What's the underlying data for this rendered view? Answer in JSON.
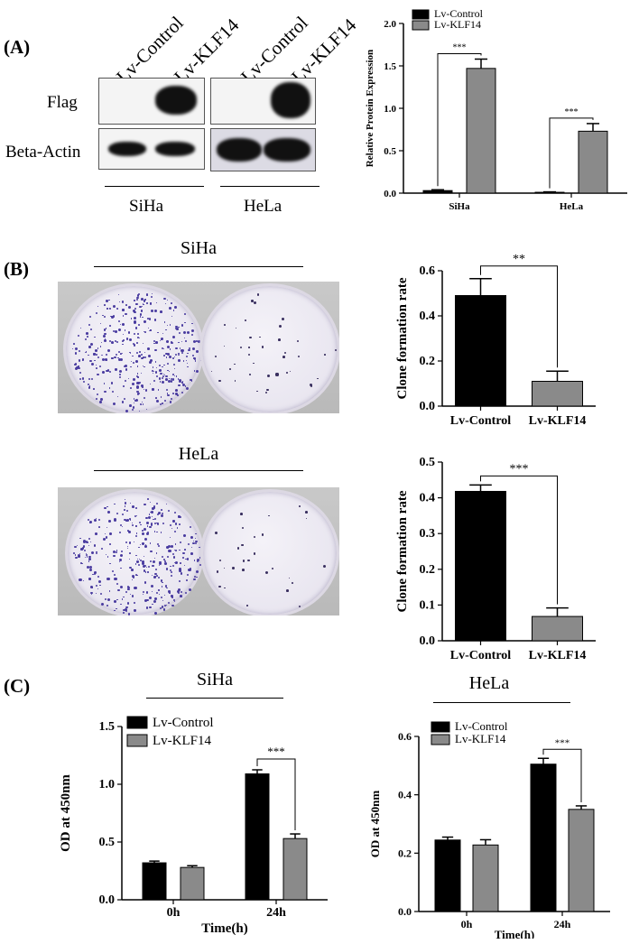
{
  "panels": {
    "A": {
      "label": "(A)",
      "blot": {
        "lanes": [
          "Lv-Control",
          "Lv-KLF14",
          "Lv-Control",
          "Lv-KLF14"
        ],
        "rows": [
          "Flag",
          "Beta-Actin"
        ],
        "cells": [
          "SiHa",
          "HeLa"
        ]
      }
    },
    "B": {
      "label": "(B)",
      "photo_titles": [
        "SiHa",
        "HeLa"
      ]
    },
    "C": {
      "label": "(C)",
      "titles": [
        "SiHa",
        "HeLa"
      ]
    }
  },
  "chart_data": [
    {
      "id": "relative-protein",
      "type": "bar",
      "categories": [
        "SiHa",
        "HeLa"
      ],
      "series": [
        {
          "name": "Lv-Control",
          "values": [
            0.03,
            0.01
          ],
          "errors": [
            0.01,
            0.005
          ],
          "color": "#000000"
        },
        {
          "name": "Lv-KLF14",
          "values": [
            1.47,
            0.73
          ],
          "errors": [
            0.11,
            0.09
          ],
          "color": "#8a8a8a"
        }
      ],
      "xlabel": "",
      "ylabel": "Relative Protein Expression",
      "ylim": [
        0,
        2.0
      ],
      "yticks": [
        "0.0",
        "0.5",
        "1.0",
        "1.5",
        "2.0"
      ],
      "legend": "top-left",
      "significance": [
        "***",
        "***"
      ]
    },
    {
      "id": "clone-siha",
      "type": "bar",
      "categories": [
        "Lv-Control",
        "Lv-KLF14"
      ],
      "values": [
        0.49,
        0.11
      ],
      "errors": [
        0.075,
        0.045
      ],
      "colors": [
        "#000000",
        "#8a8a8a"
      ],
      "ylabel": "Clone formation rate",
      "ylim": [
        0,
        0.6
      ],
      "yticks": [
        "0.0",
        "0.2",
        "0.4",
        "0.6"
      ],
      "significance": "**"
    },
    {
      "id": "clone-hela",
      "type": "bar",
      "categories": [
        "Lv-Control",
        "Lv-KLF14"
      ],
      "values": [
        0.418,
        0.068
      ],
      "errors": [
        0.018,
        0.024
      ],
      "colors": [
        "#000000",
        "#8a8a8a"
      ],
      "ylabel": "Clone formation rate",
      "ylim": [
        0,
        0.5
      ],
      "yticks": [
        "0.0",
        "0.1",
        "0.2",
        "0.3",
        "0.4",
        "0.5"
      ],
      "significance": "***"
    },
    {
      "id": "cck8-siha",
      "type": "bar",
      "categories": [
        "0h",
        "24h"
      ],
      "series": [
        {
          "name": "Lv-Control",
          "values": [
            0.32,
            1.09
          ],
          "errors": [
            0.015,
            0.035
          ],
          "color": "#000000"
        },
        {
          "name": "Lv-KLF14",
          "values": [
            0.28,
            0.53
          ],
          "errors": [
            0.015,
            0.04
          ],
          "color": "#8a8a8a"
        }
      ],
      "xlabel": "Time(h)",
      "ylabel": "OD at 450nm",
      "ylim": [
        0,
        1.5
      ],
      "yticks": [
        "0.0",
        "0.5",
        "1.0",
        "1.5"
      ],
      "legend": "top-left",
      "significance": [
        null,
        "***"
      ]
    },
    {
      "id": "cck8-hela",
      "type": "bar",
      "categories": [
        "0h",
        "24h"
      ],
      "series": [
        {
          "name": "Lv-Control",
          "values": [
            0.245,
            0.505
          ],
          "errors": [
            0.01,
            0.02
          ],
          "color": "#000000"
        },
        {
          "name": "Lv-KLF14",
          "values": [
            0.228,
            0.35
          ],
          "errors": [
            0.018,
            0.012
          ],
          "color": "#8a8a8a"
        }
      ],
      "xlabel": "Time(h)",
      "ylabel": "OD at 450nm",
      "ylim": [
        0,
        0.6
      ],
      "yticks": [
        "0.0",
        "0.2",
        "0.4",
        "0.6"
      ],
      "legend": "top-left",
      "significance": [
        null,
        "***"
      ]
    }
  ]
}
